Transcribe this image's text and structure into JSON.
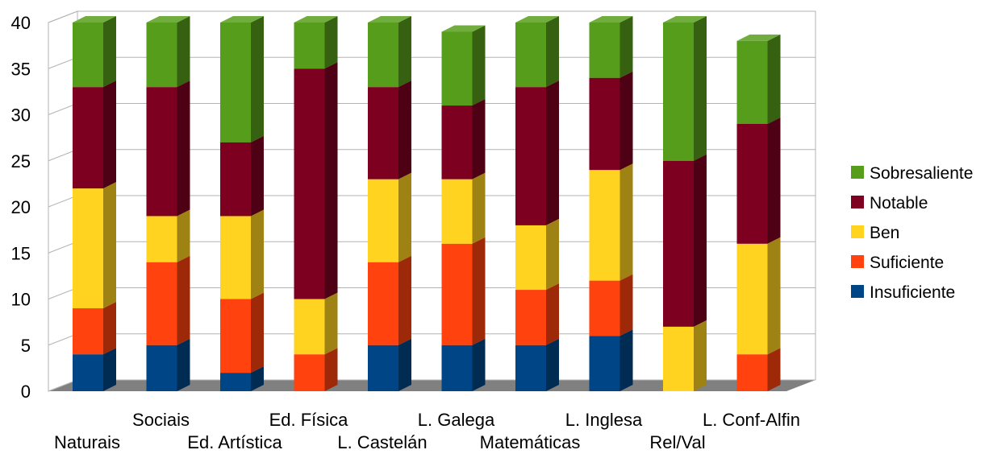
{
  "chart_data": {
    "type": "bar",
    "stacked": true,
    "style": "3d",
    "categories": [
      "Naturais",
      "Sociais",
      "Ed. Artística",
      "Ed. Física",
      "L. Castelán",
      "L. Galega",
      "Matemáticas",
      "L. Inglesa",
      "Rel/Val",
      "L. Conf-Alfin"
    ],
    "series": [
      {
        "name": "Insuficiente",
        "color": "#004586",
        "values": [
          4,
          5,
          2,
          0,
          5,
          5,
          5,
          6,
          0,
          0
        ]
      },
      {
        "name": "Suficiente",
        "color": "#ff420e",
        "values": [
          5,
          9,
          8,
          4,
          9,
          11,
          6,
          6,
          0,
          4
        ]
      },
      {
        "name": "Ben",
        "color": "#ffd320",
        "values": [
          13,
          5,
          9,
          6,
          9,
          7,
          7,
          12,
          7,
          12
        ]
      },
      {
        "name": "Notable",
        "color": "#7e0021",
        "values": [
          11,
          14,
          8,
          25,
          10,
          8,
          15,
          10,
          18,
          13
        ]
      },
      {
        "name": "Sobresaliente",
        "color": "#579d1c",
        "values": [
          7,
          7,
          13,
          5,
          7,
          8,
          7,
          6,
          15,
          9
        ]
      }
    ],
    "ylim": [
      0,
      40
    ],
    "yticks": [
      "0",
      "5",
      "10",
      "15",
      "20",
      "25",
      "30",
      "35",
      "40"
    ],
    "grid": true,
    "legend_position": "right",
    "title": "",
    "xlabel": "",
    "ylabel": ""
  }
}
